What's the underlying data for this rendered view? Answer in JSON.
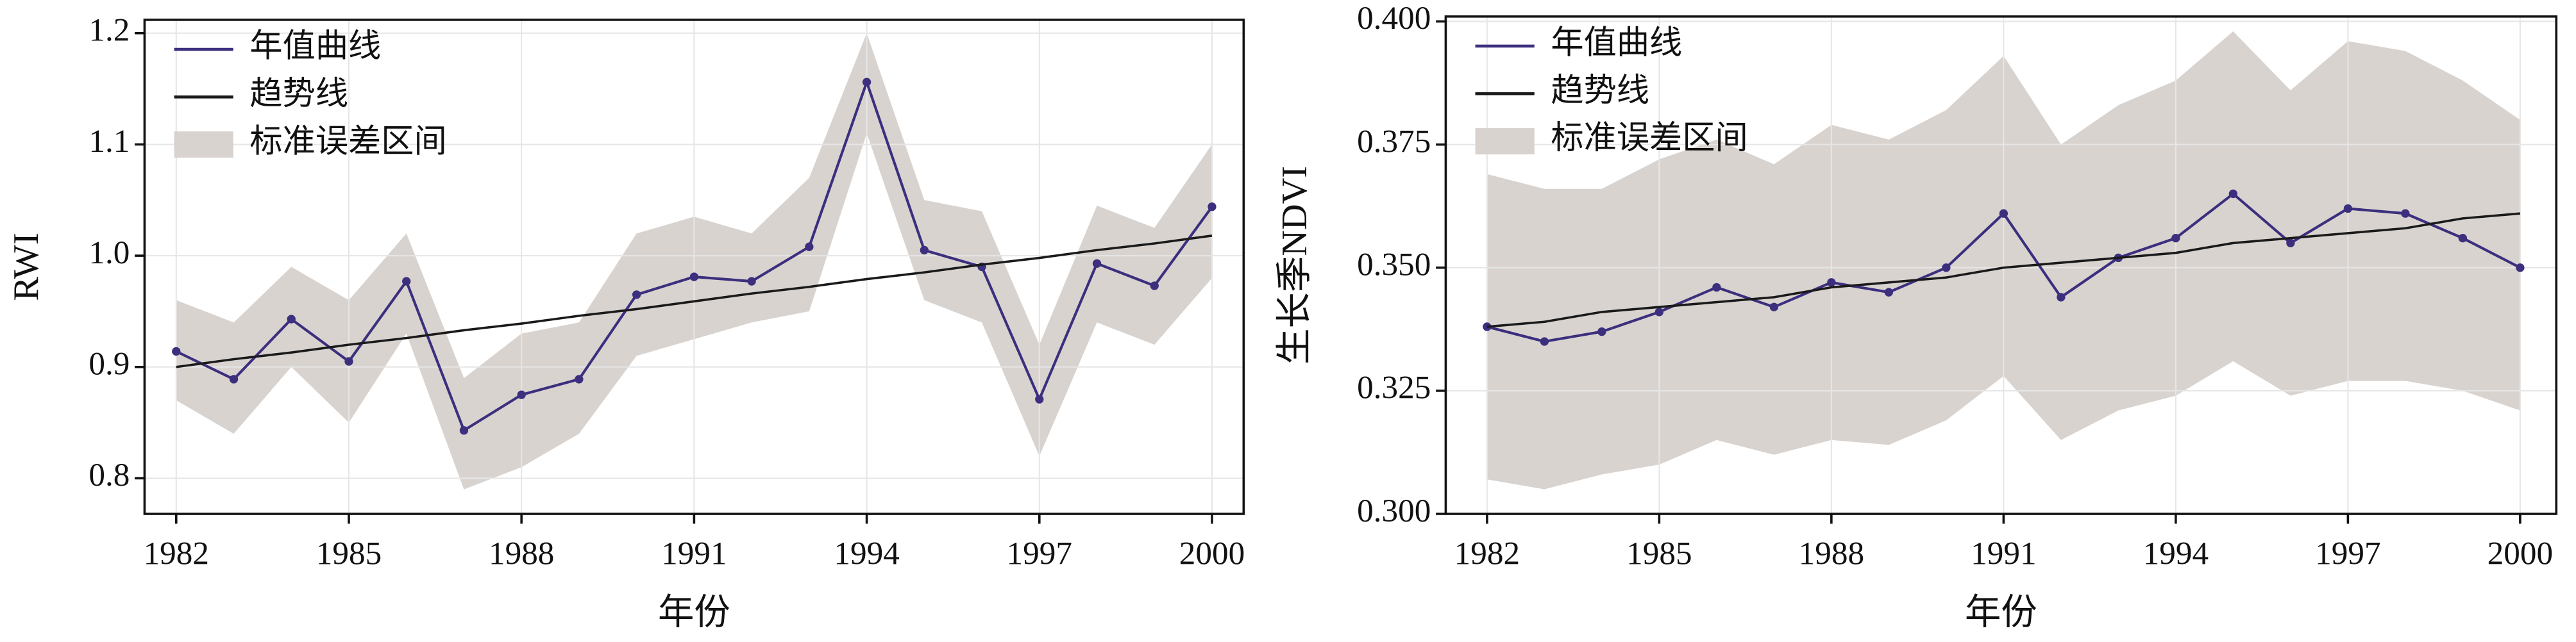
{
  "chart_data": [
    {
      "type": "line",
      "x_label": "年份",
      "y_label": "RWI",
      "x": [
        1982,
        1983,
        1984,
        1985,
        1986,
        1987,
        1988,
        1989,
        1990,
        1991,
        1992,
        1993,
        1994,
        1995,
        1996,
        1997,
        1998,
        1999,
        2000
      ],
      "series": [
        {
          "name": "年值曲线",
          "color": "#3b2f7e",
          "values": [
            0.914,
            0.889,
            0.943,
            0.905,
            0.977,
            0.843,
            0.875,
            0.889,
            0.965,
            0.981,
            0.977,
            1.008,
            1.156,
            1.005,
            0.99,
            0.871,
            0.993,
            0.973,
            1.044
          ]
        },
        {
          "name": "趋势线",
          "color": "#1a1a1a",
          "values": [
            0.9,
            0.907,
            0.913,
            0.92,
            0.926,
            0.933,
            0.939,
            0.946,
            0.952,
            0.959,
            0.966,
            0.972,
            0.979,
            0.985,
            0.992,
            0.998,
            1.005,
            1.011,
            1.018
          ]
        }
      ],
      "band": {
        "name": "标准误差区间",
        "color": "#d9d3cf",
        "upper": [
          0.96,
          0.94,
          0.99,
          0.96,
          1.02,
          0.89,
          0.93,
          0.94,
          1.02,
          1.035,
          1.02,
          1.07,
          1.2,
          1.05,
          1.04,
          0.92,
          1.045,
          1.025,
          1.1
        ],
        "lower": [
          0.87,
          0.84,
          0.9,
          0.85,
          0.93,
          0.79,
          0.81,
          0.84,
          0.91,
          0.925,
          0.94,
          0.95,
          1.11,
          0.96,
          0.94,
          0.82,
          0.94,
          0.92,
          0.98
        ]
      },
      "xlim": [
        1981.45,
        2000.55
      ],
      "ylim": [
        0.768,
        1.212
      ],
      "xticks": [
        1982,
        1985,
        1988,
        1991,
        1994,
        1997,
        2000
      ],
      "yticks": [
        0.8,
        0.9,
        {
          "value": 1,
          "label": "1.0"
        },
        1.1,
        1.2
      ],
      "grid": true,
      "legend": "upper left"
    },
    {
      "type": "line",
      "x_label": "年份",
      "y_label": "生长季NDVI",
      "x": [
        1982,
        1983,
        1984,
        1985,
        1986,
        1987,
        1988,
        1989,
        1990,
        1991,
        1992,
        1993,
        1994,
        1995,
        1996,
        1997,
        1998,
        1999,
        2000
      ],
      "series": [
        {
          "name": "年值曲线",
          "color": "#3b2f7e",
          "values": [
            0.338,
            0.335,
            0.337,
            0.341,
            0.346,
            0.342,
            0.347,
            0.345,
            0.35,
            0.361,
            0.344,
            0.352,
            0.356,
            0.365,
            0.355,
            0.362,
            0.361,
            0.356,
            0.35
          ]
        },
        {
          "name": "趋势线",
          "color": "#1a1a1a",
          "values": [
            0.338,
            0.339,
            0.341,
            0.342,
            0.343,
            0.344,
            0.346,
            0.347,
            0.348,
            0.35,
            0.351,
            0.352,
            0.353,
            0.355,
            0.356,
            0.357,
            0.358,
            0.36,
            0.361
          ]
        }
      ],
      "band": {
        "name": "标准误差区间",
        "color": "#d9d3cf",
        "upper": [
          0.369,
          0.366,
          0.366,
          0.372,
          0.376,
          0.371,
          0.379,
          0.376,
          0.382,
          0.393,
          0.375,
          0.383,
          0.388,
          0.398,
          0.386,
          0.396,
          0.394,
          0.388,
          0.38
        ],
        "lower": [
          0.307,
          0.305,
          0.308,
          0.31,
          0.315,
          0.312,
          0.315,
          0.314,
          0.319,
          0.328,
          0.315,
          0.321,
          0.324,
          0.331,
          0.324,
          0.327,
          0.327,
          0.325,
          0.321
        ]
      },
      "xlim": [
        1981.28,
        2000.63
      ],
      "ylim": [
        0.3,
        0.401
      ],
      "xticks": [
        1982,
        1985,
        1988,
        1991,
        1994,
        1997,
        2000
      ],
      "yticks": [
        {
          "value": 0.3,
          "label": "0.300"
        },
        0.325,
        {
          "value": 0.35,
          "label": "0.350"
        },
        0.375,
        {
          "value": 0.4,
          "label": "0.400"
        }
      ],
      "grid": true,
      "legend": "upper left"
    }
  ]
}
